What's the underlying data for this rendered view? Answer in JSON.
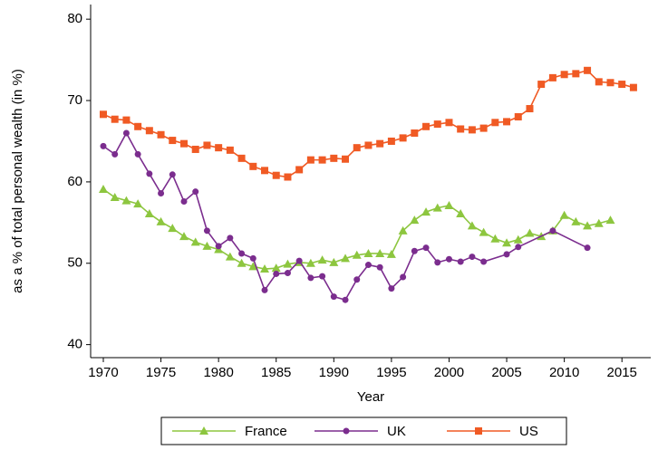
{
  "chart_data": {
    "type": "line",
    "x_label": "Year",
    "y_label": "as a % of total personal wealth (in %)",
    "xlim": [
      1968.9,
      2017.5
    ],
    "ylim": [
      38.4,
      81.8
    ],
    "xticks": [
      1970,
      1975,
      1980,
      1985,
      1990,
      1995,
      2000,
      2005,
      2010,
      2015
    ],
    "yticks": [
      40,
      50,
      60,
      70,
      80
    ],
    "grid": false,
    "legend": "bottom",
    "series": [
      {
        "name": "France",
        "color": "#8dc63f",
        "marker": "triangle",
        "x": [
          1970,
          1971,
          1972,
          1973,
          1974,
          1975,
          1976,
          1977,
          1978,
          1979,
          1980,
          1981,
          1982,
          1983,
          1984,
          1985,
          1986,
          1987,
          1988,
          1989,
          1990,
          1991,
          1992,
          1993,
          1994,
          1995,
          1996,
          1997,
          1998,
          1999,
          2000,
          2001,
          2002,
          2003,
          2004,
          2005,
          2006,
          2007,
          2008,
          2009,
          2010,
          2011,
          2012,
          2013,
          2014
        ],
        "values": [
          59.1,
          58.1,
          57.7,
          57.3,
          56.1,
          55.1,
          54.3,
          53.3,
          52.6,
          52.1,
          51.7,
          50.8,
          50.0,
          49.6,
          49.3,
          49.4,
          49.9,
          50.1,
          50.0,
          50.4,
          50.1,
          50.6,
          51.0,
          51.2,
          51.2,
          51.1,
          54.0,
          55.3,
          56.3,
          56.8,
          57.1,
          56.1,
          54.6,
          53.8,
          53.0,
          52.5,
          52.9,
          53.7,
          53.3,
          54.0,
          55.9,
          55.1,
          54.6,
          54.9,
          55.3
        ]
      },
      {
        "name": "UK",
        "color": "#7b2d8e",
        "marker": "circle",
        "x": [
          1970,
          1971,
          1972,
          1973,
          1974,
          1975,
          1976,
          1977,
          1978,
          1979,
          1980,
          1981,
          1982,
          1983,
          1984,
          1985,
          1986,
          1987,
          1988,
          1989,
          1990,
          1991,
          1992,
          1993,
          1994,
          1995,
          1996,
          1997,
          1998,
          1999,
          2000,
          2001,
          2002,
          2003,
          2005,
          2006,
          2009,
          2012
        ],
        "values": [
          64.4,
          63.4,
          66.0,
          63.4,
          61.0,
          58.6,
          60.9,
          57.6,
          58.8,
          54.0,
          52.1,
          53.1,
          51.2,
          50.6,
          46.7,
          48.7,
          48.8,
          50.3,
          48.2,
          48.4,
          45.9,
          45.5,
          48.0,
          49.8,
          49.5,
          46.9,
          48.3,
          51.5,
          51.9,
          50.1,
          50.5,
          50.2,
          50.8,
          50.2,
          51.1,
          52.0,
          54.0,
          51.9
        ]
      },
      {
        "name": "US",
        "color": "#f05a24",
        "marker": "square",
        "x": [
          1970,
          1971,
          1972,
          1973,
          1974,
          1975,
          1976,
          1977,
          1978,
          1979,
          1980,
          1981,
          1982,
          1983,
          1984,
          1985,
          1986,
          1987,
          1988,
          1989,
          1990,
          1991,
          1992,
          1993,
          1994,
          1995,
          1996,
          1997,
          1998,
          1999,
          2000,
          2001,
          2002,
          2003,
          2004,
          2005,
          2006,
          2007,
          2008,
          2009,
          2010,
          2011,
          2012,
          2013,
          2014,
          2015,
          2016
        ],
        "values": [
          68.3,
          67.7,
          67.6,
          66.8,
          66.3,
          65.8,
          65.1,
          64.7,
          64.0,
          64.5,
          64.2,
          63.9,
          62.9,
          61.9,
          61.4,
          60.8,
          60.6,
          61.5,
          62.7,
          62.7,
          62.9,
          62.8,
          64.2,
          64.5,
          64.7,
          65.0,
          65.4,
          66.0,
          66.8,
          67.1,
          67.3,
          66.5,
          66.4,
          66.6,
          67.3,
          67.4,
          68.0,
          69.0,
          72.0,
          72.8,
          73.2,
          73.3,
          73.7,
          72.3,
          72.2,
          72.0,
          71.6
        ]
      }
    ]
  }
}
